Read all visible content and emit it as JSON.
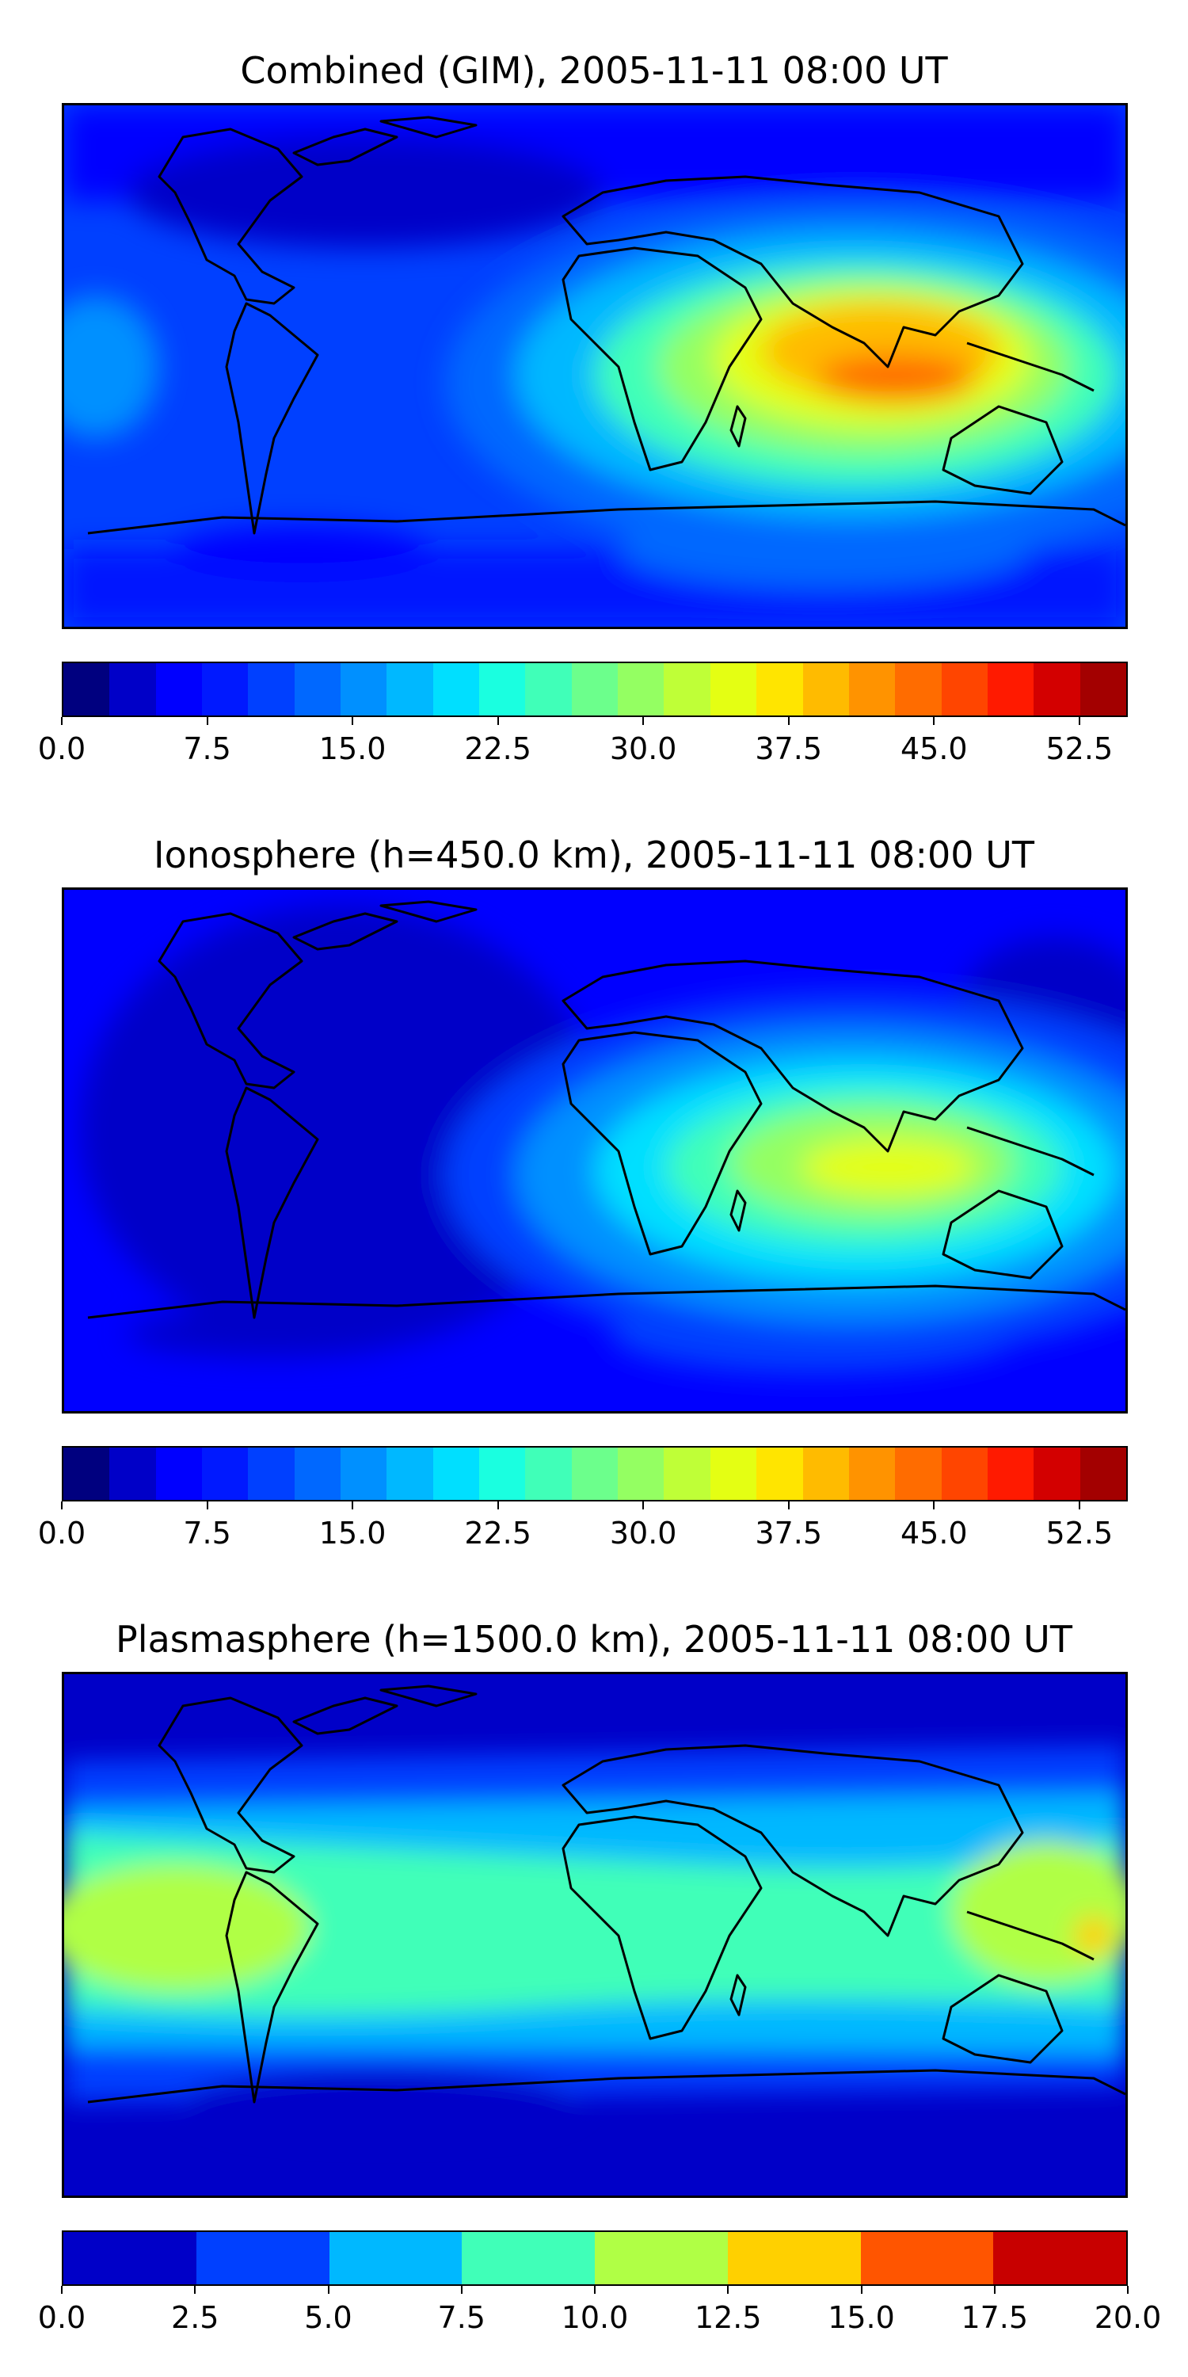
{
  "panels": [
    {
      "title": "Combined (GIM), 2005-11-11 08:00 UT",
      "colorbar": {
        "ticks": [
          "0.0",
          "7.5",
          "15.0",
          "22.5",
          "30.0",
          "37.5",
          "45.0",
          "52.5"
        ],
        "tick_values": [
          0,
          7.5,
          15,
          22.5,
          30,
          37.5,
          45,
          52.5
        ],
        "range": [
          0,
          55
        ],
        "colors": [
          "#00007f",
          "#0000c8",
          "#0000ff",
          "#0019ff",
          "#0040ff",
          "#0068ff",
          "#0090ff",
          "#00b8ff",
          "#00dfff",
          "#1affe0",
          "#40ffb8",
          "#6cff8c",
          "#94ff62",
          "#bfff37",
          "#e4ff13",
          "#ffe500",
          "#ffbb00",
          "#ff9300",
          "#ff6c00",
          "#ff4500",
          "#ff1a00",
          "#d30000",
          "#a30000"
        ]
      }
    },
    {
      "title": "Ionosphere  (h=450.0 km), 2005-11-11 08:00 UT",
      "colorbar": {
        "ticks": [
          "0.0",
          "7.5",
          "15.0",
          "22.5",
          "30.0",
          "37.5",
          "45.0",
          "52.5"
        ],
        "tick_values": [
          0,
          7.5,
          15,
          22.5,
          30,
          37.5,
          45,
          52.5
        ],
        "range": [
          0,
          55
        ],
        "colors": [
          "#00007f",
          "#0000c8",
          "#0000ff",
          "#0019ff",
          "#0040ff",
          "#0068ff",
          "#0090ff",
          "#00b8ff",
          "#00dfff",
          "#1affe0",
          "#40ffb8",
          "#6cff8c",
          "#94ff62",
          "#bfff37",
          "#e4ff13",
          "#ffe500",
          "#ffbb00",
          "#ff9300",
          "#ff6c00",
          "#ff4500",
          "#ff1a00",
          "#d30000",
          "#a30000"
        ]
      }
    },
    {
      "title": "Plasmasphere (h=1500.0 km), 2005-11-11 08:00 UT",
      "colorbar": {
        "ticks": [
          "0.0",
          "2.5",
          "5.0",
          "7.5",
          "10.0",
          "12.5",
          "15.0",
          "17.5",
          "20.0"
        ],
        "tick_values": [
          0,
          2.5,
          5,
          7.5,
          10,
          12.5,
          15,
          17.5,
          20
        ],
        "range": [
          0,
          20
        ],
        "colors": [
          "#0000c8",
          "#0040ff",
          "#00b8ff",
          "#40ffb8",
          "#b0ff45",
          "#ffd000",
          "#ff5500",
          "#c80000"
        ]
      }
    }
  ]
}
